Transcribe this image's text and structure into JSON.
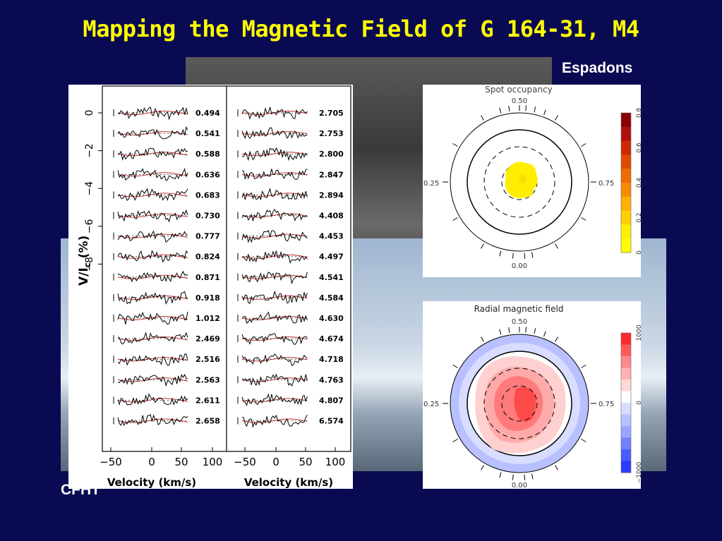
{
  "slide": {
    "title": "Mapping the Magnetic Field of G 164-31, M4",
    "instrument_label": "Espadons",
    "telescope_label": "CFHT"
  },
  "stokes_plot": {
    "ylabel": "V/I",
    "ylabel_sub": "c",
    "ylabel_unit": "(%)",
    "y_ticks": [
      "0",
      "−2",
      "−4",
      "−6",
      "−8"
    ],
    "x_ticks": [
      "−50",
      "0",
      "50",
      "100"
    ],
    "xlabel": "Velocity (km/s)",
    "left_phases": [
      "0.494",
      "0.541",
      "0.588",
      "0.636",
      "0.683",
      "0.730",
      "0.777",
      "0.824",
      "0.871",
      "0.918",
      "1.012",
      "2.469",
      "2.516",
      "2.563",
      "2.611",
      "2.658"
    ],
    "right_phases": [
      "2.705",
      "2.753",
      "2.800",
      "2.847",
      "2.894",
      "4.408",
      "4.453",
      "4.497",
      "4.541",
      "4.584",
      "4.630",
      "4.674",
      "4.718",
      "4.763",
      "4.807",
      "6.574"
    ]
  },
  "spot_map": {
    "title": "Spot occupancy",
    "top_label": "0.50",
    "left_label": "0.25",
    "right_label": "0.75",
    "bottom_label": "0.00",
    "colorbar_ticks": [
      "0.8",
      "0.6",
      "0.4",
      "0.2",
      "0"
    ],
    "colorbar_colors": [
      "#8b0000",
      "#b01010",
      "#cc2a00",
      "#e04a00",
      "#ef6a00",
      "#f78a00",
      "#ffb000",
      "#ffd000",
      "#fff000",
      "#ffff00"
    ]
  },
  "field_map": {
    "title": "Radial magnetic field",
    "top_label": "0.50",
    "left_label": "0.25",
    "right_label": "0.75",
    "bottom_label": "0.00",
    "colorbar_ticks": [
      "1000",
      "0",
      "−1000"
    ],
    "colorbar_colors": [
      "#ff2a2a",
      "#ff5a5a",
      "#ff8888",
      "#ffb2b2",
      "#ffd8d8",
      "#ffffff",
      "#d8dcff",
      "#b8c0ff",
      "#98a4ff",
      "#7080ff",
      "#4a5cff",
      "#2a3cff"
    ]
  }
}
